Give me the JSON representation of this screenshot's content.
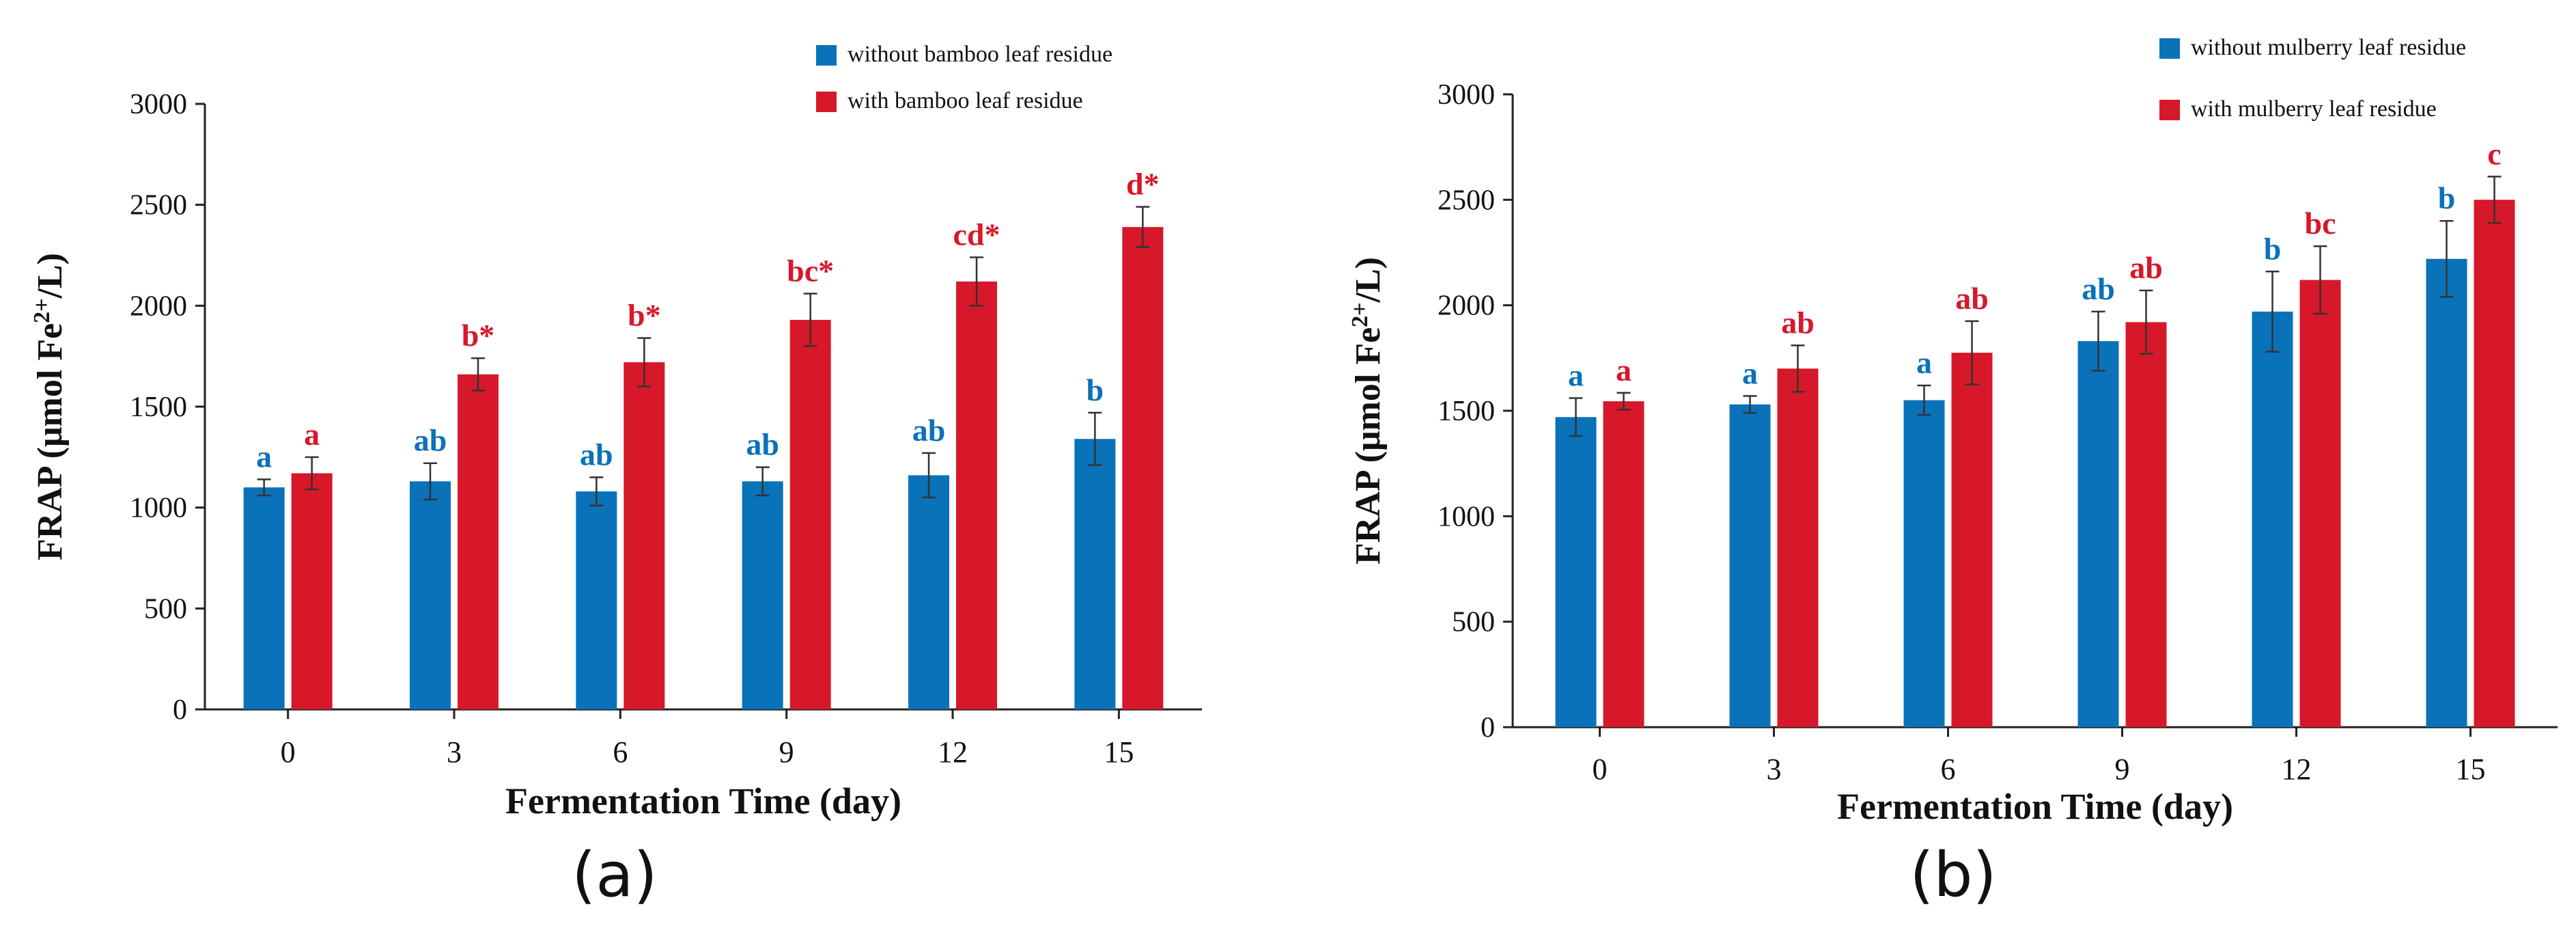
{
  "chart_data": [
    {
      "id": "a",
      "type": "bar",
      "caption": "(a)",
      "xlabel": "Fermentation Time (day)",
      "ylabel_main": "FRAP (μmol Fe",
      "ylabel_sup": "2+",
      "ylabel_tail": "/L)",
      "categories": [
        "0",
        "3",
        "6",
        "9",
        "12",
        "15"
      ],
      "ylim": [
        0,
        3000
      ],
      "yticks": [
        0,
        500,
        1000,
        1500,
        2000,
        2500,
        3000
      ],
      "series": [
        {
          "name": "without bamboo leaf residue",
          "color": "#0a72b8",
          "values": [
            1100,
            1130,
            1080,
            1130,
            1160,
            1340
          ],
          "errors": [
            40,
            90,
            70,
            70,
            110,
            130
          ],
          "letters": [
            "a",
            "ab",
            "ab",
            "ab",
            "ab",
            "b"
          ]
        },
        {
          "name": "with bamboo leaf residue",
          "color": "#d7182a",
          "values": [
            1170,
            1660,
            1720,
            1930,
            2120,
            2390
          ],
          "errors": [
            80,
            80,
            120,
            130,
            120,
            100
          ],
          "letters": [
            "a",
            "b*",
            "b*",
            "bc*",
            "cd*",
            "d*"
          ]
        }
      ]
    },
    {
      "id": "b",
      "type": "bar",
      "caption": "(b)",
      "xlabel": "Fermentation Time (day)",
      "ylabel_main": "FRAP (μmol Fe",
      "ylabel_sup": "2+",
      "ylabel_tail": "/L)",
      "categories": [
        "0",
        "3",
        "6",
        "9",
        "12",
        "15"
      ],
      "ylim": [
        0,
        3000
      ],
      "yticks": [
        0,
        500,
        1000,
        1500,
        2000,
        2500,
        3000
      ],
      "series": [
        {
          "name": "without mulberry leaf residue",
          "color": "#0a72b8",
          "values": [
            1470,
            1530,
            1550,
            1830,
            1970,
            2220
          ],
          "errors": [
            90,
            40,
            70,
            140,
            190,
            180
          ],
          "letters": [
            "a",
            "a",
            "a",
            "ab",
            "b",
            "b"
          ]
        },
        {
          "name": "with mulberry leaf residue",
          "color": "#d7182a",
          "values": [
            1545,
            1700,
            1775,
            1920,
            2120,
            2500
          ],
          "errors": [
            40,
            110,
            150,
            150,
            160,
            110
          ],
          "letters": [
            "a",
            "ab",
            "ab",
            "ab",
            "bc",
            "c"
          ]
        }
      ]
    }
  ]
}
